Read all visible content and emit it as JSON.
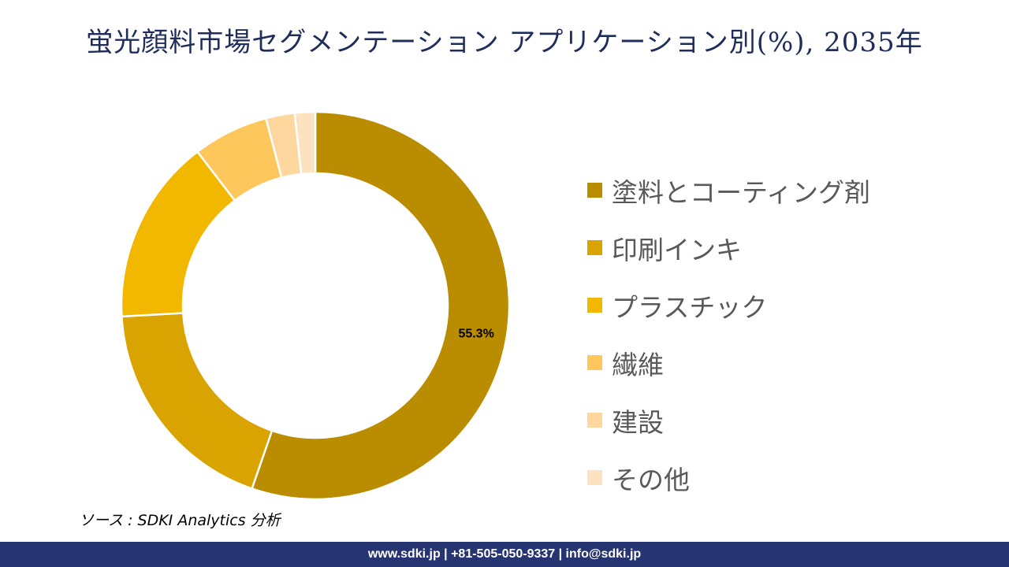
{
  "chart_data": {
    "type": "pie",
    "variant": "donut",
    "title": "蛍光顔料市場セグメンテーション アプリケーション別(%), 2035年",
    "categories": [
      "塗料とコーティング剤",
      "印刷インキ",
      "プラスチック",
      "繊維",
      "建設",
      "その他"
    ],
    "values": [
      55.3,
      18.8,
      15.5,
      6.3,
      2.4,
      1.7
    ],
    "colors": [
      "#BA8C00",
      "#D9A400",
      "#F2B800",
      "#FDC75C",
      "#FDD79E",
      "#FDE2C2"
    ],
    "data_labels": [
      {
        "index": 0,
        "text": "55.3%"
      }
    ],
    "legend_position": "right"
  },
  "source": "ソース : SDKI Analytics 分析",
  "footer": "www.sdki.jp | +81-505-050-9337 | info@sdki.jp"
}
